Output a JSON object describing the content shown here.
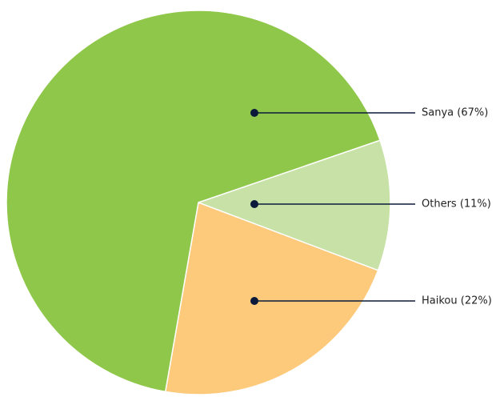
{
  "chart_data": {
    "type": "pie",
    "values": [
      11,
      22,
      67
    ],
    "value_labels": [
      "Others (11%)",
      "Haikou (22%)",
      "Sanya (67%)"
    ],
    "colors": [
      "#c7e1a6",
      "#fdc97a",
      "#8fc74a"
    ]
  }
}
